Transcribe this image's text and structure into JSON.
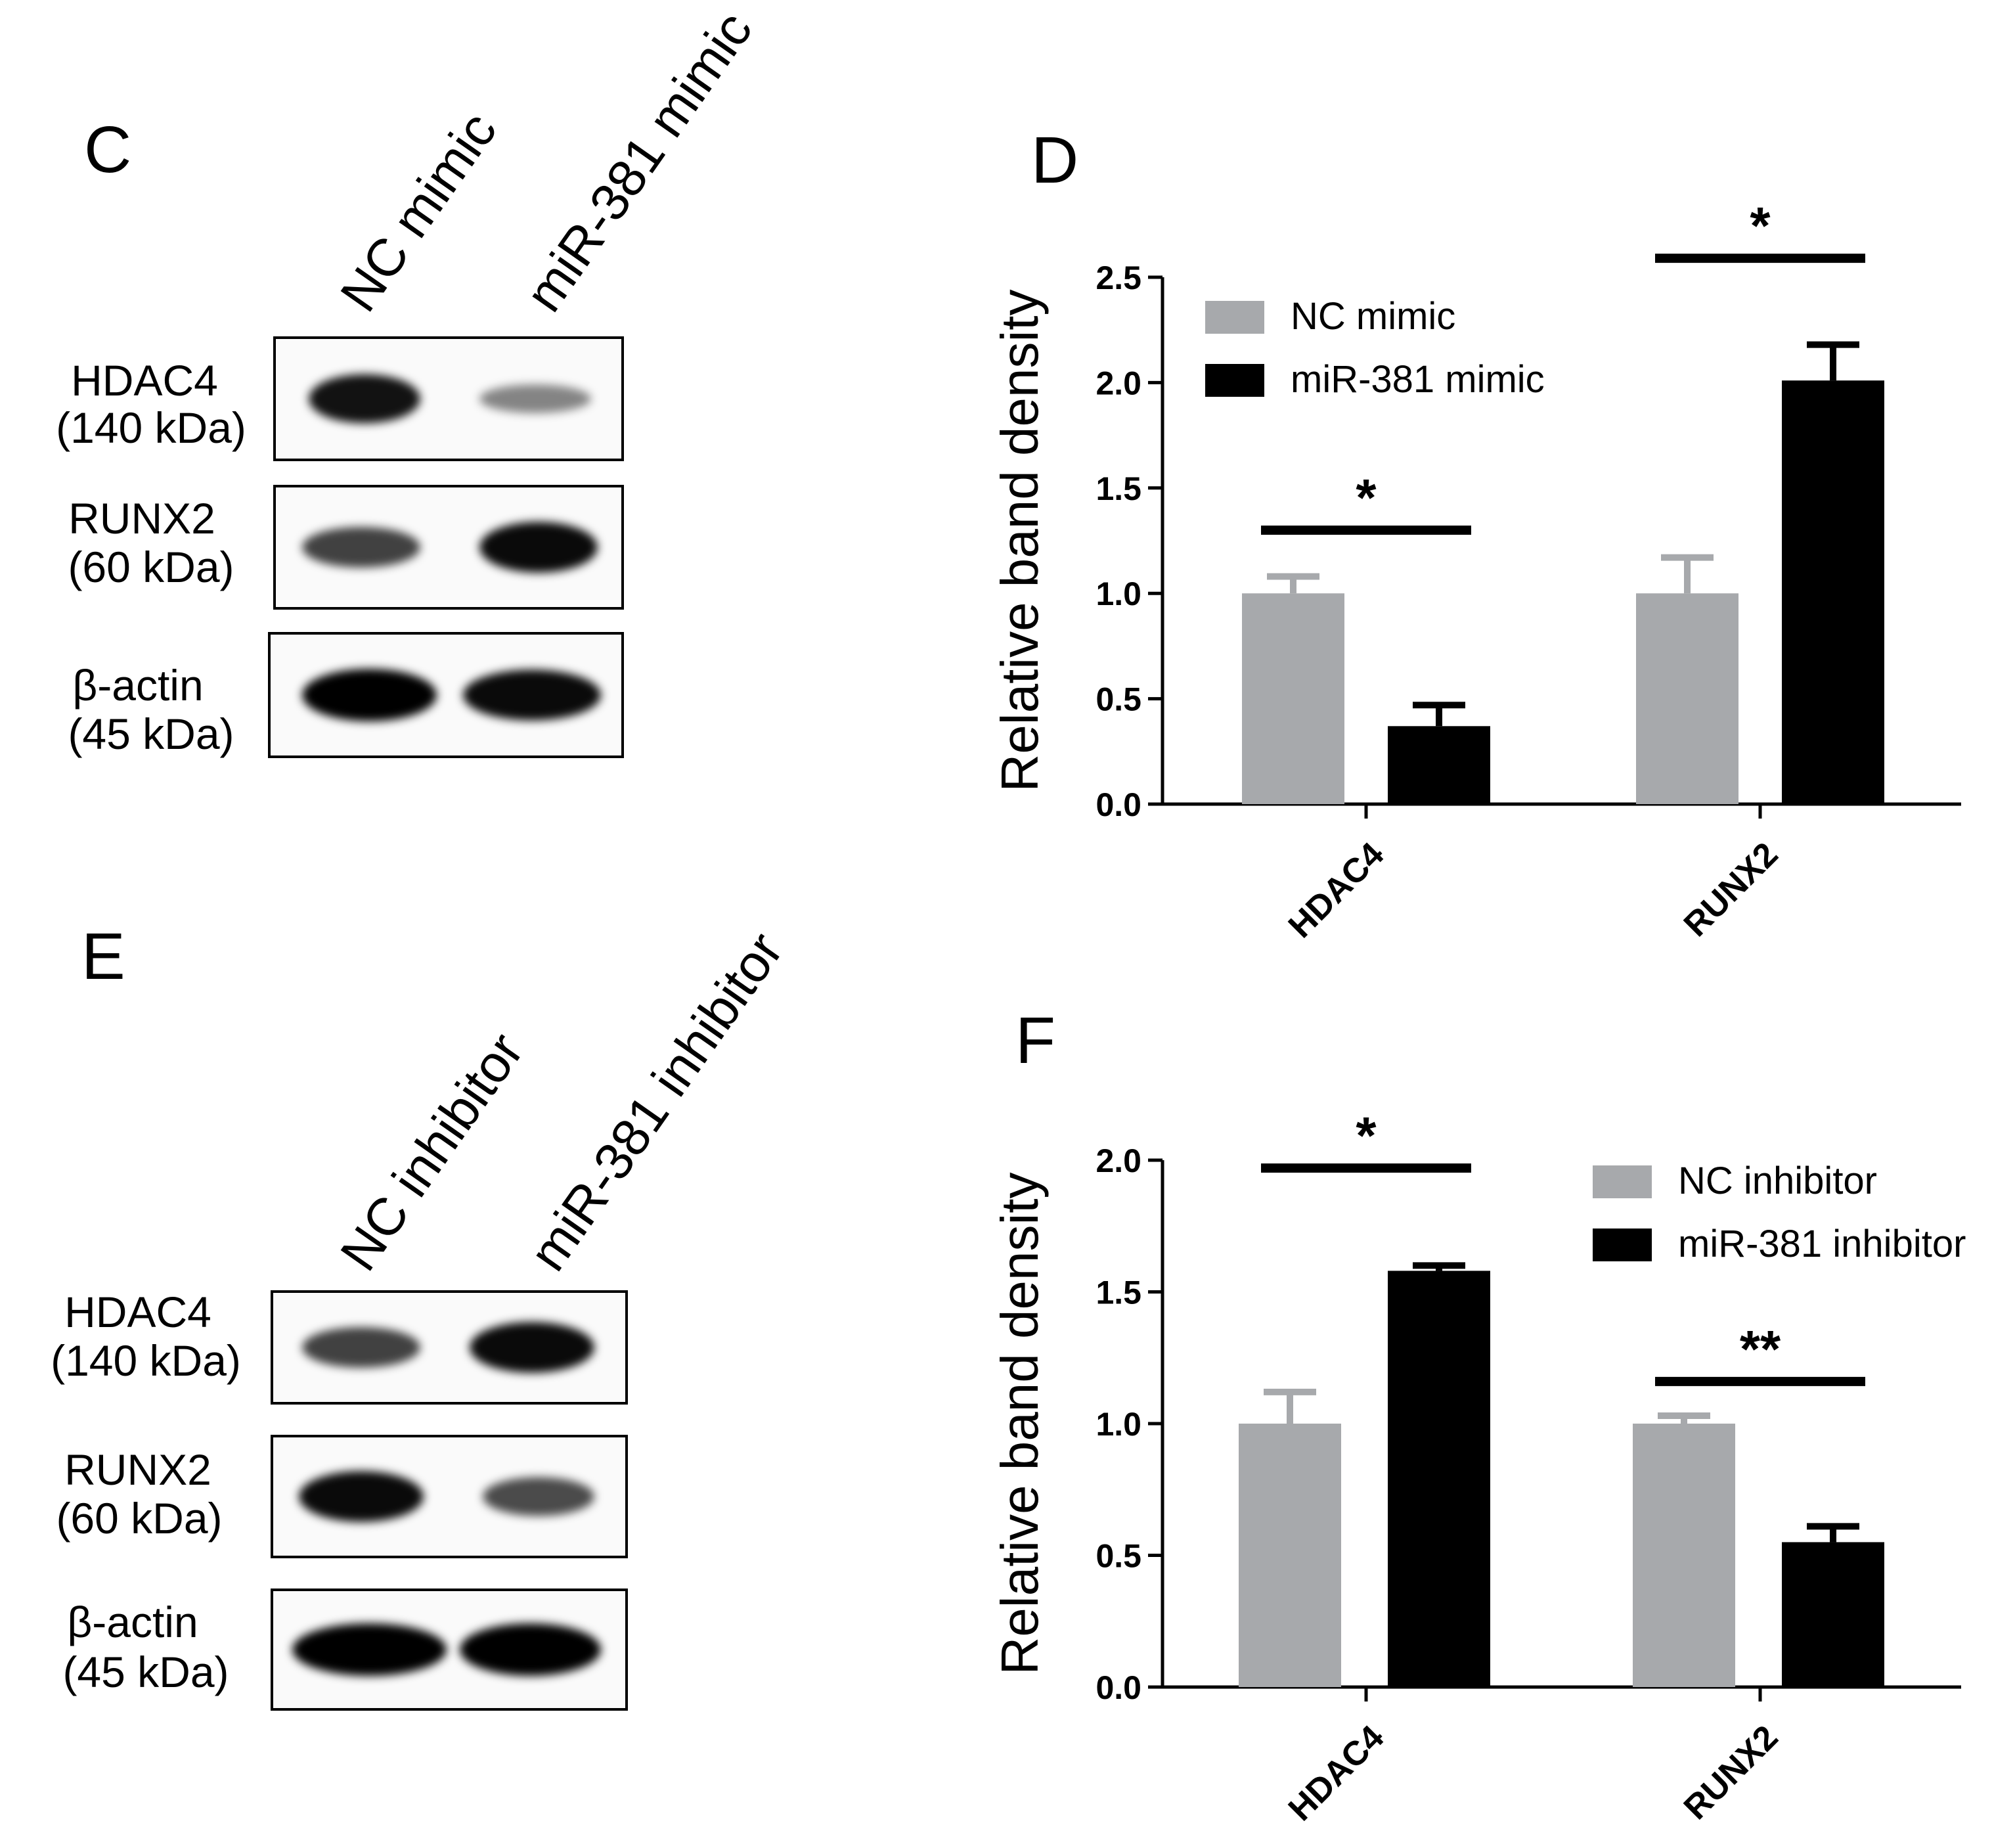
{
  "panels": {
    "C": {
      "letter": "C",
      "lanes": [
        "NC mimic",
        "miR-381 mimic"
      ],
      "blots": [
        {
          "name": "HDAC4",
          "size": "(140 kDa)",
          "band_intensity": [
            0.9,
            0.3
          ]
        },
        {
          "name": "RUNX2",
          "size": "(60 kDa)",
          "band_intensity": [
            0.65,
            0.95
          ]
        },
        {
          "name": "β-actin",
          "size": "(45 kDa)",
          "band_intensity": [
            1.0,
            0.95
          ]
        }
      ]
    },
    "E": {
      "letter": "E",
      "lanes": [
        "NC inhibitor",
        "miR-381 inhibitor"
      ],
      "blots": [
        {
          "name": "HDAC4",
          "size": "(140 kDa)",
          "band_intensity": [
            0.65,
            0.95
          ]
        },
        {
          "name": "RUNX2",
          "size": "(60 kDa)",
          "band_intensity": [
            0.95,
            0.6
          ]
        },
        {
          "name": "β-actin",
          "size": "(45 kDa)",
          "band_intensity": [
            1.0,
            1.0
          ]
        }
      ]
    },
    "D": {
      "letter": "D"
    },
    "F": {
      "letter": "F"
    }
  },
  "colors": {
    "control": "#a7a9ac",
    "treated": "#000000",
    "axis": "#000000"
  },
  "chart_data": [
    {
      "panel": "D",
      "type": "bar",
      "categories": [
        "HDAC4",
        "RUNX2"
      ],
      "series": [
        {
          "name": "NC mimic",
          "values": [
            1.0,
            1.0
          ],
          "errors": [
            0.08,
            0.17
          ]
        },
        {
          "name": "miR-381 mimic",
          "values": [
            0.37,
            2.01
          ],
          "errors": [
            0.1,
            0.17
          ]
        }
      ],
      "ylabel": "Relative band density",
      "ylim": [
        0,
        2.5
      ],
      "yticks": [
        "0.0",
        "0.5",
        "1.0",
        "1.5",
        "2.0",
        "2.5"
      ],
      "significance": [
        {
          "category": "HDAC4",
          "label": "*",
          "y": 1.3
        },
        {
          "category": "RUNX2",
          "label": "*",
          "y": 2.59
        }
      ],
      "legend": "top-left"
    },
    {
      "panel": "F",
      "type": "bar",
      "categories": [
        "HDAC4",
        "RUNX2"
      ],
      "series": [
        {
          "name": "NC inhibitor",
          "values": [
            1.0,
            1.0
          ],
          "errors": [
            0.12,
            0.03
          ]
        },
        {
          "name": "miR-381 inhibitor",
          "values": [
            1.58,
            0.55
          ],
          "errors": [
            0.02,
            0.06
          ]
        }
      ],
      "ylabel": "Relative band density",
      "ylim": [
        0,
        2.0
      ],
      "yticks": [
        "0.0",
        "0.5",
        "1.0",
        "1.5",
        "2.0"
      ],
      "significance": [
        {
          "category": "HDAC4",
          "label": "*",
          "y": 1.97
        },
        {
          "category": "RUNX2",
          "label": "**",
          "y": 1.16
        }
      ],
      "legend": "top-right"
    }
  ]
}
